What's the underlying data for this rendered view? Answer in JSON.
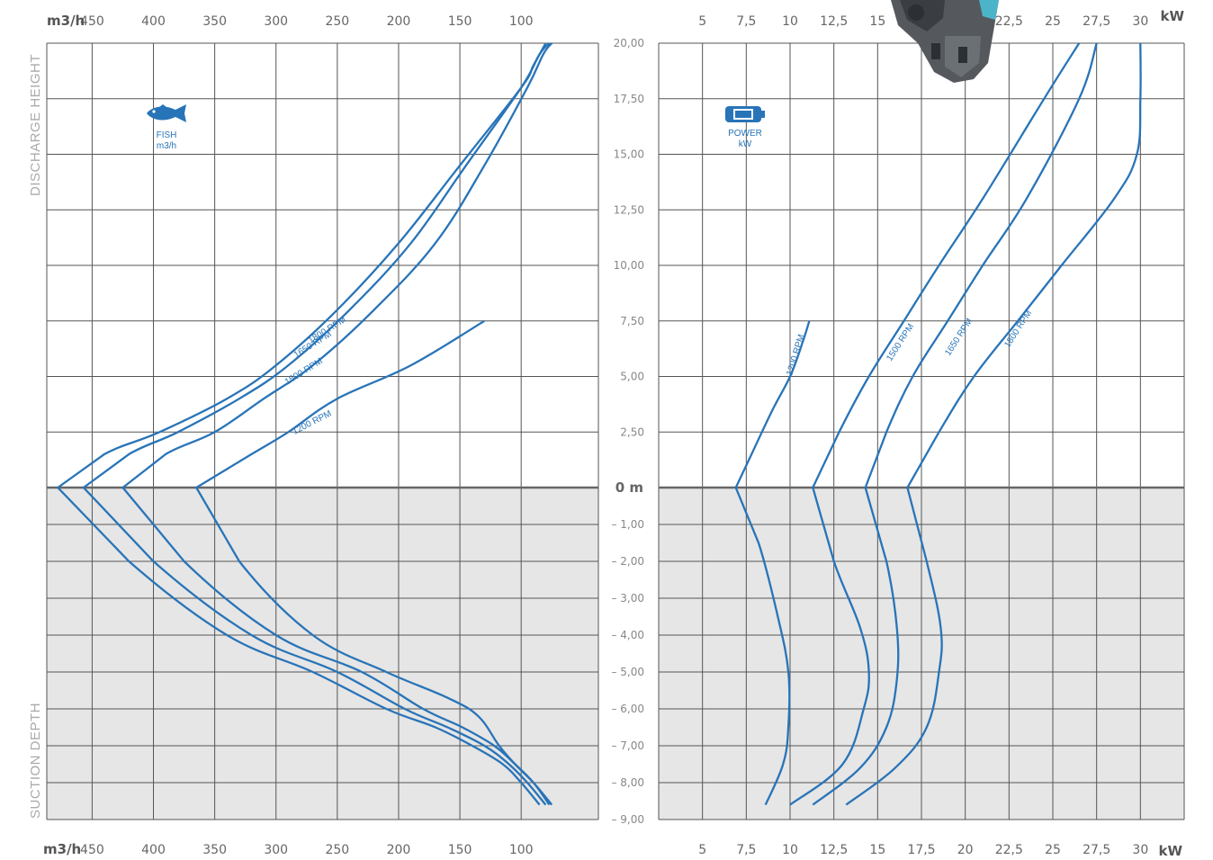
{
  "colors": {
    "curve": "#2874b8",
    "grid": "#555555",
    "suction_bg": "#e6e6e6",
    "side_title": "#aaaaaa"
  },
  "side_titles": {
    "discharge": "DISCHARGE HEIGHT",
    "suction": "SUCTION DEPTH"
  },
  "y_axis": {
    "ticks": [
      "20,00",
      "17,50",
      "15,00",
      "12,50",
      "10,00",
      "7,50",
      "5,00",
      "2,50",
      "0 m",
      "– 1,00",
      "– 2,00",
      "– 3,00",
      "– 4,00",
      "– 5,00",
      "– 6,00",
      "– 7,00",
      "– 8,00",
      "– 9,00"
    ]
  },
  "icons": {
    "fish": {
      "icon": "fish-icon",
      "label1": "FISH",
      "label2": "m3/h"
    },
    "power": {
      "icon": "battery-icon",
      "label1": "POWER",
      "label2": "kW"
    }
  },
  "chart_data": [
    {
      "type": "line",
      "title": "FISH m3/h",
      "x_unit": "m3/h",
      "x_ticks": [
        "450",
        "400",
        "350",
        "300",
        "250",
        "200",
        "150",
        "100"
      ],
      "y_ticks": [
        "20,00",
        "17,50",
        "15,00",
        "12,50",
        "10,00",
        "7,50",
        "5,00",
        "2,50",
        "0 m",
        "– 1,00",
        "– 2,00",
        "– 3,00",
        "– 4,00",
        "– 5,00",
        "– 6,00",
        "– 7,00",
        "– 8,00",
        "– 9,00"
      ],
      "x_reversed": true,
      "xlim": [
        487,
        37
      ],
      "ylim_discharge": [
        0,
        20
      ],
      "ylim_suction": [
        0,
        -9
      ],
      "grid": true,
      "series": [
        {
          "name": "1800 RPM",
          "discharge": [
            [
              478,
              0
            ],
            [
              440,
              1.5
            ],
            [
              395,
              2.5
            ],
            [
              340,
              4
            ],
            [
              300,
              5.5
            ],
            [
              250,
              8
            ],
            [
              200,
              11
            ],
            [
              150,
              14.5
            ],
            [
              100,
              18
            ],
            [
              90,
              19
            ],
            [
              80,
              20
            ]
          ],
          "suction": [
            [
              478,
              0
            ],
            [
              420,
              -2
            ],
            [
              340,
              -4
            ],
            [
              270,
              -5
            ],
            [
              210,
              -6
            ],
            [
              170,
              -6.5
            ],
            [
              140,
              -7
            ],
            [
              115,
              -7.5
            ],
            [
              100,
              -8
            ],
            [
              85,
              -8.6
            ]
          ]
        },
        {
          "name": "1650 RPM",
          "discharge": [
            [
              457,
              0
            ],
            [
              420,
              1.5
            ],
            [
              380,
              2.5
            ],
            [
              330,
              4
            ],
            [
              290,
              5.5
            ],
            [
              240,
              8
            ],
            [
              190,
              11
            ],
            [
              145,
              14.5
            ],
            [
              100,
              18
            ],
            [
              85,
              19.5
            ],
            [
              77,
              20
            ]
          ],
          "suction": [
            [
              457,
              0
            ],
            [
              400,
              -2
            ],
            [
              320,
              -4
            ],
            [
              250,
              -5
            ],
            [
              195,
              -6
            ],
            [
              160,
              -6.5
            ],
            [
              130,
              -7
            ],
            [
              110,
              -7.5
            ],
            [
              95,
              -8
            ],
            [
              80,
              -8.6
            ]
          ]
        },
        {
          "name": "1500 RPM",
          "discharge": [
            [
              425,
              0
            ],
            [
              390,
              1.5
            ],
            [
              350,
              2.5
            ],
            [
              310,
              4
            ],
            [
              270,
              5.5
            ],
            [
              220,
              8
            ],
            [
              170,
              11
            ],
            [
              130,
              14.5
            ],
            [
              95,
              18
            ],
            [
              82,
              19.5
            ],
            [
              75,
              20
            ]
          ],
          "suction": [
            [
              425,
              0
            ],
            [
              375,
              -2
            ],
            [
              300,
              -4
            ],
            [
              230,
              -5
            ],
            [
              180,
              -6
            ],
            [
              148,
              -6.5
            ],
            [
              122,
              -7
            ],
            [
              105,
              -7.5
            ],
            [
              90,
              -8
            ],
            [
              77,
              -8.6
            ]
          ]
        },
        {
          "name": "1200 RPM",
          "discharge": [
            [
              365,
              0
            ],
            [
              320,
              1.5
            ],
            [
              290,
              2.5
            ],
            [
              250,
              4
            ],
            [
              190,
              5.5
            ],
            [
              130,
              7.5
            ]
          ],
          "suction": [
            [
              365,
              0
            ],
            [
              330,
              -2
            ],
            [
              270,
              -4
            ],
            [
              210,
              -5
            ],
            [
              160,
              -5.7
            ],
            [
              135,
              -6.2
            ],
            [
              118,
              -7
            ],
            [
              105,
              -7.5
            ],
            [
              90,
              -8
            ],
            [
              75,
              -8.6
            ]
          ]
        }
      ]
    },
    {
      "type": "line",
      "title": "POWER kW",
      "x_unit": "kW",
      "x_ticks": [
        "5",
        "7,5",
        "10",
        "12,5",
        "15",
        "17,5",
        "20",
        "22,5",
        "25",
        "27,5",
        "30"
      ],
      "y_ticks": [
        "20,00",
        "17,50",
        "15,00",
        "12,50",
        "10,00",
        "7,50",
        "5,00",
        "2,50",
        "0 m",
        "– 1,00",
        "– 2,00",
        "– 3,00",
        "– 4,00",
        "– 5,00",
        "– 6,00",
        "– 7,00",
        "– 8,00",
        "– 9,00"
      ],
      "xlim": [
        2.5,
        32.5
      ],
      "ylim_discharge": [
        0,
        20
      ],
      "ylim_suction": [
        0,
        -9
      ],
      "grid": true,
      "series": [
        {
          "name": "1200 RPM",
          "discharge": [
            [
              6.9,
              0
            ],
            [
              7.8,
              1.5
            ],
            [
              9,
              3.5
            ],
            [
              10,
              5
            ],
            [
              10.7,
              6.5
            ],
            [
              11.1,
              7.5
            ]
          ],
          "suction": [
            [
              6.9,
              0
            ],
            [
              8.2,
              -1.5
            ],
            [
              9.3,
              -3.5
            ],
            [
              9.9,
              -5
            ],
            [
              9.9,
              -6.5
            ],
            [
              9.6,
              -7.5
            ],
            [
              8.6,
              -8.6
            ]
          ]
        },
        {
          "name": "1500 RPM",
          "discharge": [
            [
              11.3,
              0
            ],
            [
              12.8,
              2.5
            ],
            [
              14.5,
              5
            ],
            [
              16.5,
              7.5
            ],
            [
              18.5,
              10
            ],
            [
              21,
              13
            ],
            [
              24.5,
              17.5
            ],
            [
              26.5,
              20
            ]
          ],
          "suction": [
            [
              11.3,
              0
            ],
            [
              12.5,
              -2
            ],
            [
              14,
              -3.8
            ],
            [
              14.5,
              -5
            ],
            [
              14.2,
              -6
            ],
            [
              13,
              -7.5
            ],
            [
              10,
              -8.6
            ]
          ]
        },
        {
          "name": "1650 RPM",
          "discharge": [
            [
              14.3,
              0
            ],
            [
              15.5,
              2.5
            ],
            [
              17,
              5
            ],
            [
              19,
              7.5
            ],
            [
              21,
              10
            ],
            [
              23.5,
              13
            ],
            [
              26.5,
              17.5
            ],
            [
              27.5,
              20
            ]
          ],
          "suction": [
            [
              14.3,
              0
            ],
            [
              15.5,
              -2
            ],
            [
              16.1,
              -3.8
            ],
            [
              16.1,
              -5.2
            ],
            [
              15.5,
              -6.5
            ],
            [
              14,
              -7.6
            ],
            [
              11.3,
              -8.6
            ]
          ]
        },
        {
          "name": "1800 RPM",
          "discharge": [
            [
              16.7,
              0
            ],
            [
              18.5,
              2.5
            ],
            [
              20.5,
              5
            ],
            [
              23,
              7.5
            ],
            [
              25.5,
              10
            ],
            [
              28.5,
              13
            ],
            [
              29.8,
              15
            ],
            [
              30,
              17.5
            ],
            [
              30,
              20
            ]
          ],
          "suction": [
            [
              16.7,
              0
            ],
            [
              17.8,
              -2
            ],
            [
              18.6,
              -3.8
            ],
            [
              18.5,
              -5
            ],
            [
              17.8,
              -6.5
            ],
            [
              16,
              -7.6
            ],
            [
              13.2,
              -8.6
            ]
          ]
        }
      ]
    }
  ]
}
